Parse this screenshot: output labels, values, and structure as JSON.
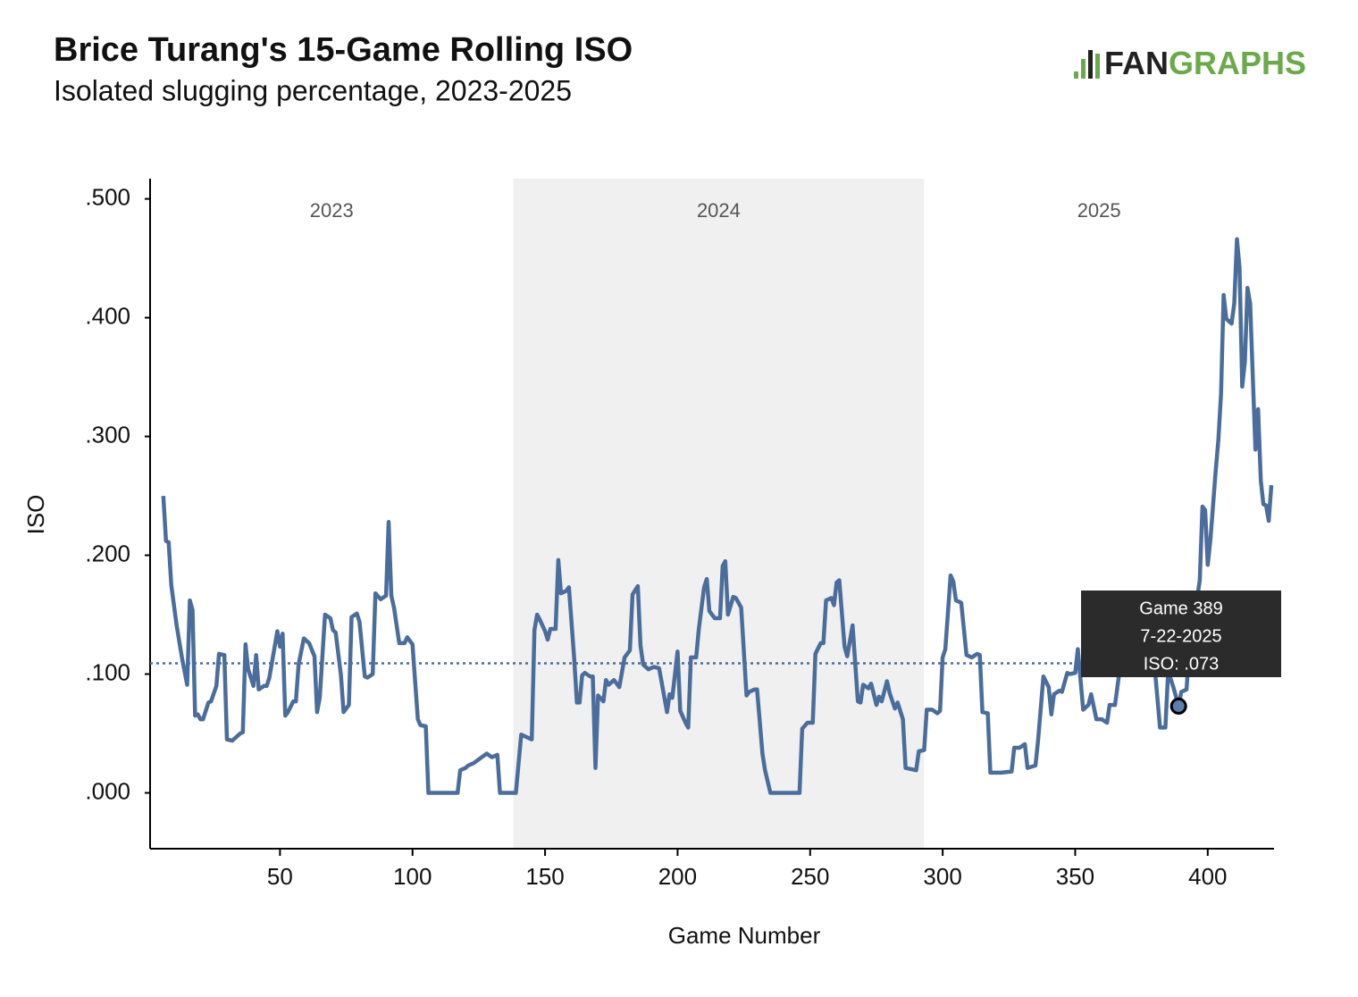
{
  "chart_data": {
    "type": "line",
    "title": "Brice Turang's 15-Game Rolling ISO",
    "subtitle": "Isolated slugging percentage, 2023-2025",
    "logo": [
      "FAN",
      "GRAPHS"
    ],
    "xlabel": "Game Number",
    "ylabel": "ISO",
    "xlim": [
      1,
      425
    ],
    "ylim": [
      -0.047,
      0.517
    ],
    "xticks": [
      50,
      100,
      150,
      200,
      250,
      300,
      350,
      400
    ],
    "yticks": [
      {
        "value": 0,
        "label": ".000"
      },
      {
        "value": 0.1,
        "label": ".100"
      },
      {
        "value": 0.2,
        "label": ".200"
      },
      {
        "value": 0.3,
        "label": ".300"
      },
      {
        "value": 0.4,
        "label": ".400"
      },
      {
        "value": 0.5,
        "label": ".500"
      }
    ],
    "regions": [
      {
        "label": "2023",
        "start": 1,
        "end": 138,
        "shaded": false
      },
      {
        "label": "2024",
        "start": 138,
        "end": 293,
        "shaded": true
      },
      {
        "label": "2025",
        "start": 293,
        "end": 425,
        "shaded": false
      }
    ],
    "reference_line": 0.109,
    "x": [
      6,
      7,
      8,
      9,
      11,
      13,
      15,
      16,
      17,
      18,
      19,
      20,
      21,
      23,
      24,
      26,
      27,
      29,
      30,
      32,
      35,
      36,
      37,
      38,
      40,
      41,
      42,
      44,
      45,
      46,
      49,
      50,
      51,
      52,
      53,
      55,
      56,
      57,
      59,
      61,
      63,
      64,
      65,
      67,
      69,
      70,
      71,
      73,
      74,
      76,
      77,
      79,
      80,
      82,
      83,
      85,
      86,
      88,
      90,
      91,
      92,
      93,
      95,
      97,
      98,
      100,
      102,
      103,
      105,
      106,
      117,
      118,
      120,
      121,
      123,
      128,
      130,
      132,
      133,
      139,
      141,
      143,
      145,
      146,
      147,
      148,
      150,
      151,
      152,
      154,
      155,
      156,
      158,
      159,
      161,
      162,
      163,
      164,
      165,
      167,
      168,
      169,
      170,
      172,
      173,
      174,
      176,
      178,
      180,
      182,
      183,
      185,
      186,
      187,
      189,
      191,
      193,
      194,
      196,
      197,
      198,
      200,
      201,
      203,
      204,
      205,
      207,
      208,
      210,
      211,
      212,
      214,
      216,
      217,
      218,
      219,
      221,
      222,
      224,
      226,
      227,
      229,
      230,
      232,
      233,
      235,
      246,
      247,
      249,
      251,
      252,
      254,
      255,
      256,
      258,
      259,
      260,
      261,
      263,
      264,
      266,
      268,
      269,
      270,
      272,
      273,
      275,
      276,
      277,
      279,
      280,
      282,
      283,
      285,
      286,
      290,
      291,
      293,
      294,
      296,
      298,
      299,
      300,
      301,
      303,
      304,
      305,
      307,
      309,
      311,
      313,
      314,
      315,
      317,
      318,
      322,
      326,
      327,
      329,
      331,
      332,
      335,
      336,
      338,
      340,
      341,
      342,
      344,
      345,
      347,
      348,
      350,
      351,
      353,
      355,
      356,
      358,
      360,
      362,
      363,
      365,
      367,
      369,
      371,
      372,
      373,
      374,
      376,
      377,
      379,
      380,
      382,
      384,
      385,
      386,
      387,
      389,
      390,
      392,
      393,
      395,
      397,
      398,
      399,
      400,
      401,
      403,
      404,
      405,
      406,
      407,
      409,
      410,
      411,
      412,
      413,
      414,
      415,
      416,
      418,
      419,
      420,
      421,
      422,
      423,
      424
    ],
    "series": [
      {
        "name": "ISO",
        "color": "#4a6d9c",
        "values": [
          0.25,
          0.212,
          0.211,
          0.175,
          0.141,
          0.114,
          0.091,
          0.162,
          0.154,
          0.065,
          0.066,
          0.062,
          0.062,
          0.076,
          0.077,
          0.09,
          0.117,
          0.116,
          0.045,
          0.044,
          0.05,
          0.051,
          0.125,
          0.104,
          0.09,
          0.116,
          0.087,
          0.09,
          0.09,
          0.097,
          0.136,
          0.123,
          0.134,
          0.065,
          0.068,
          0.077,
          0.077,
          0.108,
          0.13,
          0.126,
          0.115,
          0.068,
          0.08,
          0.15,
          0.147,
          0.137,
          0.135,
          0.099,
          0.068,
          0.074,
          0.148,
          0.151,
          0.144,
          0.098,
          0.097,
          0.1,
          0.168,
          0.163,
          0.166,
          0.228,
          0.166,
          0.156,
          0.126,
          0.126,
          0.131,
          0.125,
          0.062,
          0.057,
          0.056,
          0,
          0,
          0.019,
          0.021,
          0.023,
          0.025,
          0.033,
          0.03,
          0.032,
          0,
          0,
          0.049,
          0.047,
          0.045,
          0.137,
          0.15,
          0.146,
          0.136,
          0.129,
          0.138,
          0.138,
          0.196,
          0.168,
          0.17,
          0.173,
          0.113,
          0.076,
          0.076,
          0.099,
          0.101,
          0.098,
          0.098,
          0.021,
          0.082,
          0.077,
          0.095,
          0.091,
          0.095,
          0.089,
          0.114,
          0.12,
          0.167,
          0.174,
          0.124,
          0.108,
          0.104,
          0.106,
          0.105,
          0.093,
          0.068,
          0.083,
          0.08,
          0.119,
          0.069,
          0.059,
          0.055,
          0.114,
          0.114,
          0.138,
          0.173,
          0.18,
          0.153,
          0.147,
          0.147,
          0.191,
          0.195,
          0.15,
          0.165,
          0.164,
          0.156,
          0.082,
          0.085,
          0.087,
          0.087,
          0.033,
          0.019,
          0,
          0,
          0.054,
          0.059,
          0.059,
          0.117,
          0.126,
          0.126,
          0.162,
          0.164,
          0.158,
          0.177,
          0.179,
          0.123,
          0.115,
          0.141,
          0.077,
          0.076,
          0.091,
          0.088,
          0.092,
          0.074,
          0.081,
          0.077,
          0.094,
          0.084,
          0.071,
          0.076,
          0.062,
          0.021,
          0.019,
          0.035,
          0.036,
          0.07,
          0.07,
          0.067,
          0.069,
          0.114,
          0.121,
          0.183,
          0.178,
          0.162,
          0.16,
          0.116,
          0.114,
          0.117,
          0.116,
          0.068,
          0.067,
          0.017,
          0.017,
          0.018,
          0.038,
          0.038,
          0.041,
          0.021,
          0.023,
          0.044,
          0.098,
          0.089,
          0.066,
          0.083,
          0.086,
          0.085,
          0.101,
          0.1,
          0.101,
          0.121,
          0.07,
          0.074,
          0.083,
          0.062,
          0.062,
          0.059,
          0.074,
          0.074,
          0.107,
          0.106,
          0.121,
          0.11,
          0.141,
          0.153,
          0.156,
          0.141,
          0.108,
          0.105,
          0.055,
          0.055,
          0.099,
          0.096,
          0.089,
          0.073,
          0.085,
          0.087,
          0.122,
          0.149,
          0.179,
          0.241,
          0.238,
          0.192,
          0.213,
          0.271,
          0.297,
          0.336,
          0.419,
          0.399,
          0.395,
          0.412,
          0.466,
          0.442,
          0.342,
          0.363,
          0.425,
          0.412,
          0.289,
          0.323,
          0.263,
          0.243,
          0.242,
          0.229,
          0.259
        ]
      }
    ],
    "tooltip": {
      "x": 389,
      "value": 0.073,
      "lines": [
        "Game 389",
        "7-22-2025",
        "ISO: .073"
      ]
    }
  }
}
